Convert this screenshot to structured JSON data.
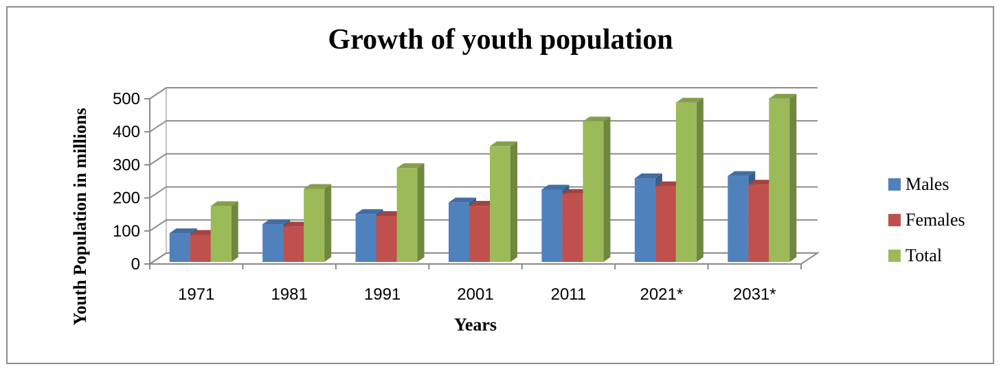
{
  "chart_data": {
    "type": "bar",
    "title": "Growth of youth population",
    "xlabel": "Years",
    "ylabel": "Youth Population in millions",
    "categories": [
      "1971",
      "1981",
      "1991",
      "2001",
      "2011",
      "2021*",
      "2031*"
    ],
    "series": [
      {
        "name": "Males",
        "color": "#4f81bd",
        "values": [
          87,
          114,
          145,
          180,
          219,
          253,
          260
        ]
      },
      {
        "name": "Females",
        "color": "#c0504d",
        "values": [
          82,
          107,
          139,
          170,
          206,
          229,
          234
        ]
      },
      {
        "name": "Total",
        "color": "#9bbb59",
        "values": [
          169,
          221,
          284,
          350,
          425,
          482,
          494
        ]
      }
    ],
    "ylim": [
      0,
      500
    ],
    "yticks": [
      0,
      100,
      200,
      300,
      400,
      500
    ],
    "grid": true,
    "legend_position": "right",
    "style": "3d-clustered-column"
  }
}
